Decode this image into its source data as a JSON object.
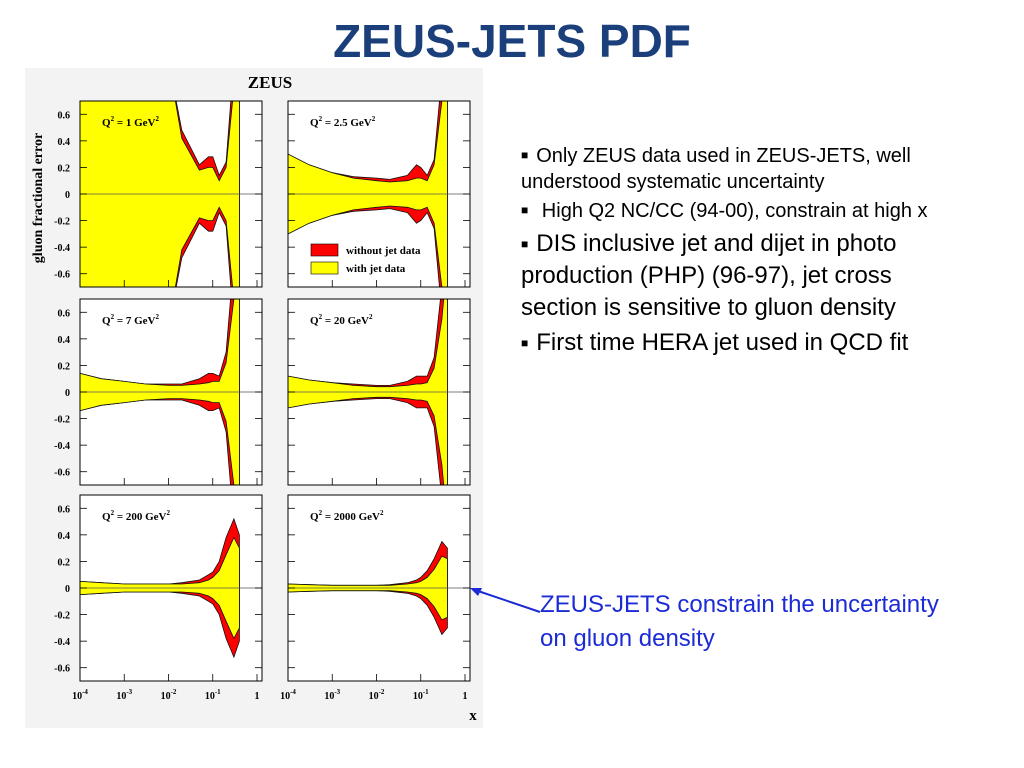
{
  "slide": {
    "title": "ZEUS-JETS PDF",
    "bullets": [
      {
        "text": "Only ZEUS data used in ZEUS-JETS, well understood systematic uncertainty",
        "size": "small"
      },
      {
        "text": " High Q2 NC/CC (94-00), constrain at high x",
        "size": "small"
      },
      {
        "text": "DIS inclusive jet and dijet in photo production (PHP) (96-97), jet cross section is sensitive to gluon density",
        "size": "large"
      },
      {
        "text": "First time HERA jet used in QCD fit",
        "size": "large"
      }
    ],
    "callout": "ZEUS-JETS constrain the uncertainty on gluon density",
    "callout_color": "#1c2bd6",
    "title_color": "#1a3f7a"
  },
  "chart_data": {
    "type": "area",
    "title": "ZEUS",
    "ylabel": "gluon fractional error",
    "xlabel": "x",
    "xscale": "log",
    "xlim": [
      0.0001,
      1
    ],
    "ylim": [
      -0.7,
      0.7
    ],
    "ytick_labels": [
      "0.6",
      "0.4",
      "0.2",
      "0",
      "-0.2",
      "-0.4",
      "-0.6"
    ],
    "xtick_labels": [
      "10-4",
      "10-3",
      "10-2",
      "10-1",
      "1"
    ],
    "grid": false,
    "legend": {
      "placement": "panel 2, lower-right",
      "entries": [
        {
          "label": "without jet data",
          "color": "#ff0000"
        },
        {
          "label": "with jet data",
          "color": "#ffff00"
        }
      ]
    },
    "colors": {
      "without": "#ff0000",
      "with": "#ffff00",
      "edge": "#111111"
    },
    "panels": [
      {
        "label": "Q",
        "sup": "2",
        "suffix": " = 1 GeV",
        "sup2": "2",
        "x": [
          0.0001,
          0.0003,
          0.001,
          0.003,
          0.01,
          0.02,
          0.05,
          0.08,
          0.1,
          0.14,
          0.2,
          0.3,
          0.4
        ],
        "without_band": [
          2.0,
          2.0,
          2.0,
          2.0,
          1.2,
          0.48,
          0.22,
          0.28,
          0.28,
          0.14,
          0.24,
          1.0,
          2.0
        ],
        "with_band": [
          2.0,
          2.0,
          2.0,
          2.0,
          1.0,
          0.42,
          0.18,
          0.2,
          0.2,
          0.1,
          0.2,
          0.8,
          2.0
        ]
      },
      {
        "label": "Q",
        "sup": "2",
        "suffix": " = 2.5 GeV",
        "sup2": "2",
        "x": [
          0.0001,
          0.0003,
          0.001,
          0.003,
          0.01,
          0.02,
          0.05,
          0.08,
          0.1,
          0.14,
          0.2,
          0.3,
          0.4
        ],
        "without_band": [
          0.3,
          0.22,
          0.16,
          0.13,
          0.12,
          0.11,
          0.14,
          0.22,
          0.2,
          0.14,
          0.26,
          0.9,
          2.0
        ],
        "with_band": [
          0.3,
          0.22,
          0.16,
          0.12,
          0.1,
          0.09,
          0.1,
          0.12,
          0.12,
          0.1,
          0.22,
          0.7,
          2.0
        ]
      },
      {
        "label": "Q",
        "sup": "2",
        "suffix": " = 7 GeV",
        "sup2": "2",
        "x": [
          0.0001,
          0.0003,
          0.001,
          0.003,
          0.01,
          0.02,
          0.05,
          0.08,
          0.1,
          0.14,
          0.2,
          0.3,
          0.4
        ],
        "without_band": [
          0.14,
          0.1,
          0.08,
          0.06,
          0.06,
          0.06,
          0.1,
          0.14,
          0.14,
          0.12,
          0.3,
          1.0,
          2.0
        ],
        "with_band": [
          0.14,
          0.1,
          0.08,
          0.06,
          0.05,
          0.05,
          0.06,
          0.07,
          0.08,
          0.08,
          0.22,
          0.7,
          2.0
        ]
      },
      {
        "label": "Q",
        "sup": "2",
        "suffix": " = 20 GeV",
        "sup2": "2",
        "x": [
          0.0001,
          0.0003,
          0.001,
          0.003,
          0.01,
          0.02,
          0.05,
          0.08,
          0.1,
          0.14,
          0.2,
          0.3,
          0.4
        ],
        "without_band": [
          0.12,
          0.09,
          0.07,
          0.06,
          0.05,
          0.05,
          0.08,
          0.12,
          0.12,
          0.12,
          0.26,
          0.8,
          2.0
        ],
        "with_band": [
          0.12,
          0.09,
          0.07,
          0.05,
          0.04,
          0.04,
          0.05,
          0.06,
          0.06,
          0.07,
          0.18,
          0.55,
          2.0
        ]
      },
      {
        "label": "Q",
        "sup": "2",
        "suffix": " = 200 GeV",
        "sup2": "2",
        "x": [
          0.0001,
          0.0003,
          0.001,
          0.003,
          0.01,
          0.02,
          0.05,
          0.08,
          0.1,
          0.14,
          0.2,
          0.3,
          0.4
        ],
        "without_band": [
          0.05,
          0.04,
          0.03,
          0.03,
          0.03,
          0.04,
          0.06,
          0.1,
          0.12,
          0.2,
          0.38,
          0.52,
          0.4
        ],
        "with_band": [
          0.05,
          0.04,
          0.03,
          0.03,
          0.03,
          0.03,
          0.04,
          0.06,
          0.08,
          0.13,
          0.25,
          0.38,
          0.3
        ]
      },
      {
        "label": "Q",
        "sup": "2",
        "suffix": " = 2000 GeV",
        "sup2": "2",
        "x": [
          0.0001,
          0.0003,
          0.001,
          0.003,
          0.01,
          0.02,
          0.05,
          0.08,
          0.1,
          0.14,
          0.2,
          0.3,
          0.4
        ],
        "without_band": [
          0.03,
          0.025,
          0.02,
          0.02,
          0.02,
          0.025,
          0.04,
          0.06,
          0.08,
          0.13,
          0.22,
          0.35,
          0.3
        ],
        "with_band": [
          0.03,
          0.025,
          0.02,
          0.02,
          0.02,
          0.02,
          0.03,
          0.04,
          0.05,
          0.08,
          0.14,
          0.24,
          0.22
        ]
      }
    ]
  }
}
